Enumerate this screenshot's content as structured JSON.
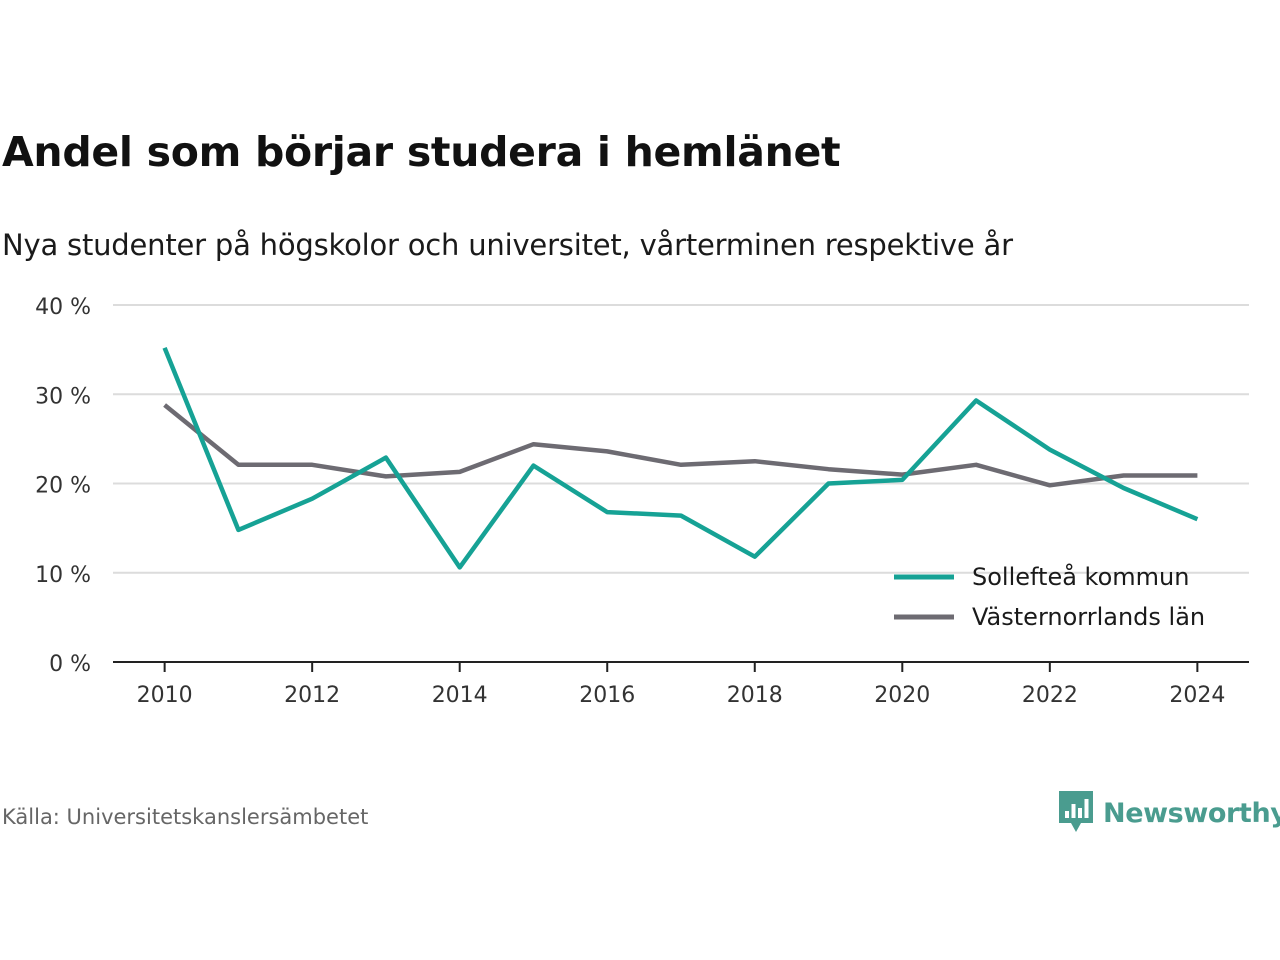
{
  "title": "Andel som börjar studera i hemlänet",
  "subtitle": "Nya studenter på högskolor och universitet, vårterminen respektive år",
  "source": "Källa: Universitetskanslersämbetet",
  "brand": "Newsworthy",
  "colors": {
    "teal": "#16a295",
    "gray": "#6d6b72",
    "grid": "#dcdcdc",
    "axis": "#222222",
    "brand": "#4a9c8f"
  },
  "chart_data": {
    "type": "line",
    "x": [
      2010,
      2011,
      2012,
      2013,
      2014,
      2015,
      2016,
      2017,
      2018,
      2019,
      2020,
      2021,
      2022,
      2023,
      2024
    ],
    "series": [
      {
        "name": "Sollefteå kommun",
        "color": "#16a295",
        "values": [
          35.2,
          14.8,
          18.3,
          22.9,
          10.6,
          22.0,
          16.8,
          16.4,
          11.8,
          20.0,
          20.4,
          29.3,
          23.8,
          19.5,
          16.0
        ]
      },
      {
        "name": "Västernorrlands län",
        "color": "#6d6b72",
        "values": [
          28.8,
          22.1,
          22.1,
          20.8,
          21.3,
          24.4,
          23.6,
          22.1,
          22.5,
          21.6,
          21.0,
          22.1,
          19.8,
          20.9,
          20.9
        ]
      }
    ],
    "y_ticks": [
      "0 %",
      "10 %",
      "20 %",
      "30 %",
      "40 %"
    ],
    "y_tick_values": [
      0,
      10,
      20,
      30,
      40
    ],
    "x_ticks": [
      "2010",
      "2012",
      "2014",
      "2016",
      "2018",
      "2020",
      "2022",
      "2024"
    ],
    "x_tick_values": [
      2010,
      2012,
      2014,
      2016,
      2018,
      2020,
      2022,
      2024
    ],
    "ylim": [
      0,
      40
    ],
    "xlim": [
      2009.3,
      2024.7
    ],
    "grid": true,
    "legend_position": "bottom-right"
  }
}
